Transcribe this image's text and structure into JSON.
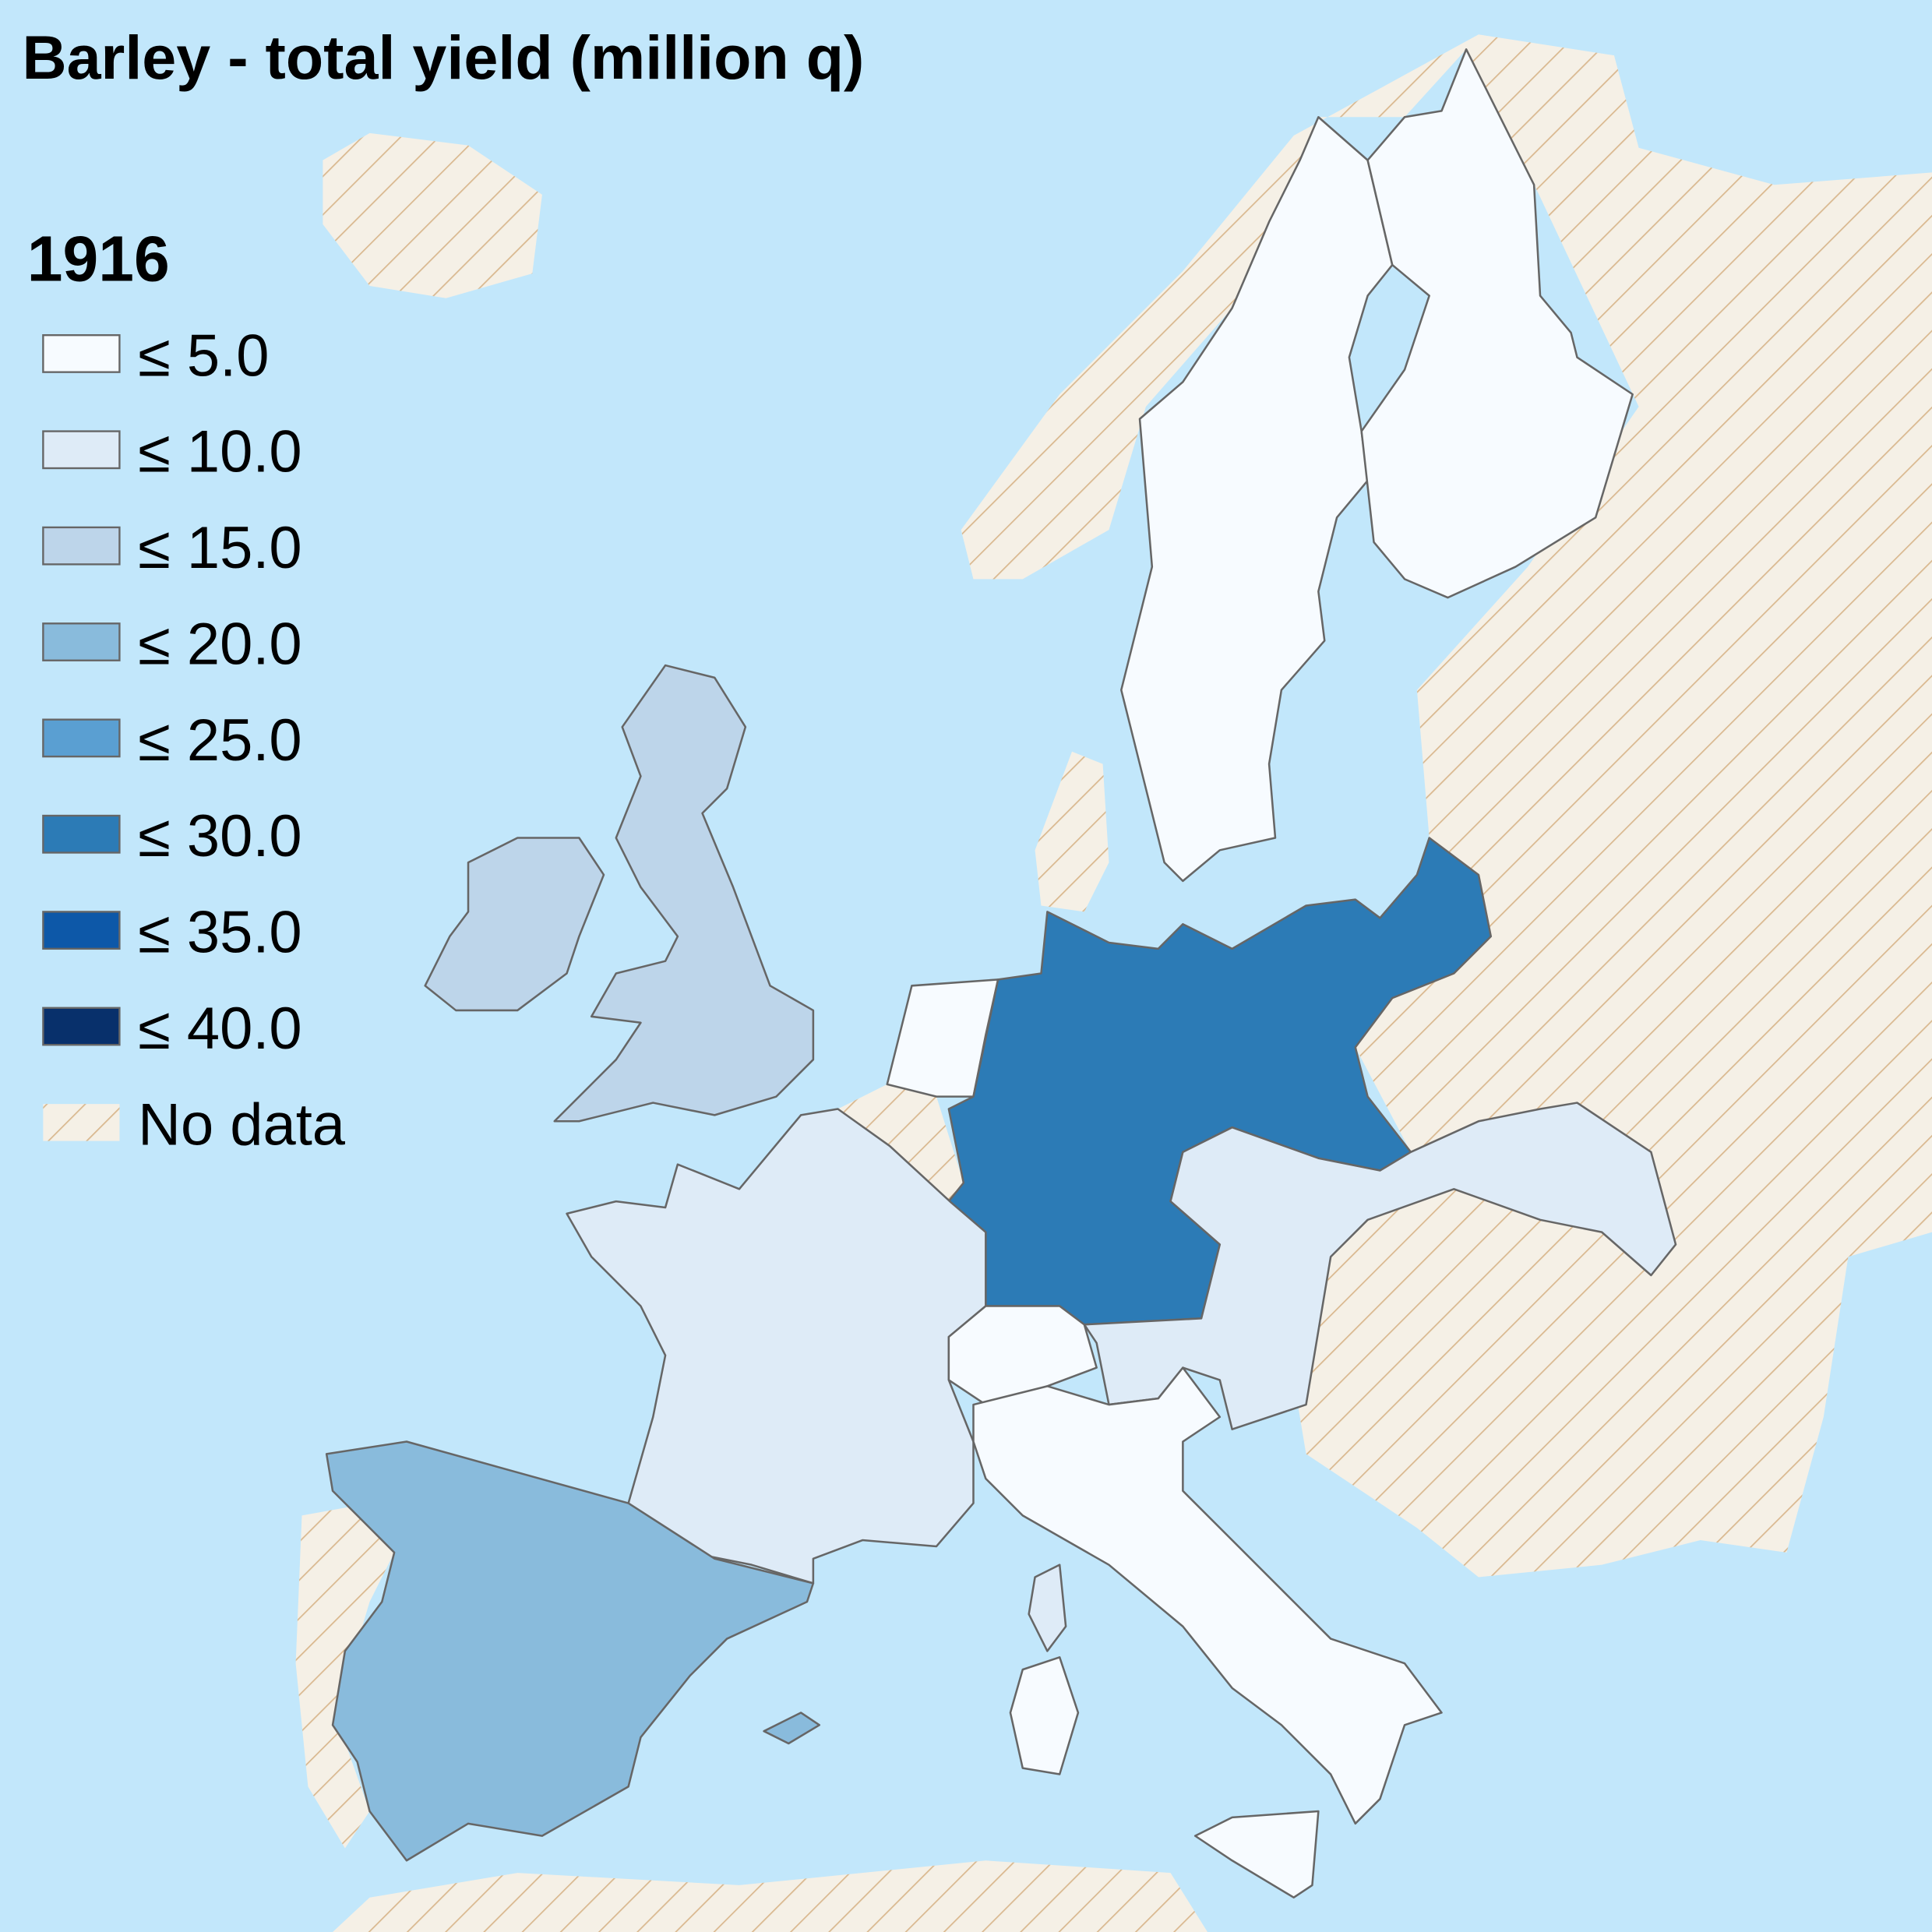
{
  "title": "Barley - total yield (million q)",
  "legend": {
    "title": "1916",
    "items": [
      {
        "label": "≤ 5.0",
        "color": "#f7fbff"
      },
      {
        "label": "≤ 10.0",
        "color": "#deebf7"
      },
      {
        "label": "≤ 15.0",
        "color": "#bdd5ea"
      },
      {
        "label": "≤ 20.0",
        "color": "#89bbdc"
      },
      {
        "label": "≤ 25.0",
        "color": "#5a9fd2"
      },
      {
        "label": "≤ 30.0",
        "color": "#2c7bb6"
      },
      {
        "label": "≤ 35.0",
        "color": "#0d58a8"
      },
      {
        "label": "≤ 40.0",
        "color": "#08306b"
      }
    ],
    "no_data": "No data"
  }
}
